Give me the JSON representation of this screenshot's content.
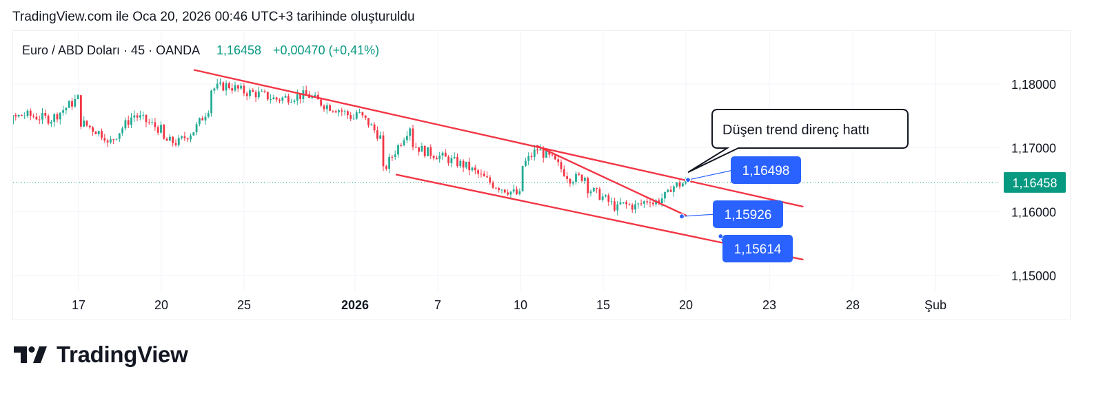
{
  "header": {
    "created_text": "TradingView.com ile Oca 20, 2026 00:46 UTC+3 tarihinde oluşturuldu"
  },
  "symbol": {
    "name": "Euro / ABD Doları · 45 · OANDA",
    "price": "1,16458",
    "change": "+0,00470 (+0,41%)"
  },
  "brand": {
    "name": "TradingView"
  },
  "colors": {
    "up": "#22ab94",
    "down": "#f23645",
    "trendline": "#f23645",
    "label_blue": "#2962ff",
    "price_badge": "#089981",
    "text": "#131722",
    "grid": "#f0f3fa"
  },
  "chart_data": {
    "type": "candlestick",
    "title": "Euro / ABD Doları · 45 · OANDA",
    "y_axis_labels": [
      "1,18000",
      "1,17000",
      "1,16000",
      "1,15000"
    ],
    "y_ticks": [
      1.18,
      1.17,
      1.16,
      1.15
    ],
    "ylim": [
      1.1475,
      1.1875
    ],
    "x_tick_labels": [
      "17",
      "20",
      "25",
      "2026",
      "7",
      "10",
      "15",
      "20",
      "23",
      "28",
      "Şub"
    ],
    "x_tick_dates": [
      "2025-12-17",
      "2025-12-20",
      "2025-12-25",
      "2026-01-01",
      "2026-01-07",
      "2026-01-10",
      "2026-01-15",
      "2026-01-20",
      "2026-01-23",
      "2026-01-28",
      "2026-02-01"
    ],
    "last_price": 1.16458,
    "last_price_label": "1,16458",
    "price_path": [
      [
        "2025-12-13",
        1.173
      ],
      [
        "2025-12-14",
        1.1735
      ],
      [
        "2025-12-15",
        1.1752
      ],
      [
        "2025-12-16",
        1.1745
      ],
      [
        "2025-12-17",
        1.1778
      ],
      [
        "2025-12-17",
        1.1742
      ],
      [
        "2025-12-18",
        1.1718
      ],
      [
        "2025-12-18",
        1.1702
      ],
      [
        "2025-12-19",
        1.1752
      ],
      [
        "2025-12-20",
        1.1728
      ],
      [
        "2025-12-20",
        1.1712
      ],
      [
        "2025-12-21",
        1.1708
      ],
      [
        "2025-12-22",
        1.1728
      ],
      [
        "2025-12-23",
        1.1768
      ],
      [
        "2025-12-23",
        1.1792
      ],
      [
        "2025-12-24",
        1.1798
      ],
      [
        "2025-12-25",
        1.1788
      ],
      [
        "2025-12-26",
        1.1784
      ],
      [
        "2025-12-27",
        1.1776
      ],
      [
        "2025-12-28",
        1.178
      ],
      [
        "2025-12-29",
        1.1783
      ],
      [
        "2025-12-30",
        1.1768
      ],
      [
        "2025-12-31",
        1.176
      ],
      [
        "2026-01-01",
        1.1745
      ],
      [
        "2026-01-01",
        1.1758
      ],
      [
        "2026-01-02",
        1.1738
      ],
      [
        "2026-01-03",
        1.1712
      ],
      [
        "2026-01-03",
        1.1662
      ],
      [
        "2026-01-04",
        1.1698
      ],
      [
        "2026-01-05",
        1.1735
      ],
      [
        "2026-01-05",
        1.1708
      ],
      [
        "2026-01-06",
        1.1695
      ],
      [
        "2026-01-07",
        1.1688
      ],
      [
        "2026-01-08",
        1.1672
      ],
      [
        "2026-01-09",
        1.1643
      ],
      [
        "2026-01-10",
        1.1625
      ],
      [
        "2026-01-10",
        1.1668
      ],
      [
        "2026-01-11",
        1.1698
      ],
      [
        "2026-01-12",
        1.168
      ],
      [
        "2026-01-13",
        1.1652
      ],
      [
        "2026-01-14",
        1.1655
      ],
      [
        "2026-01-14",
        1.1638
      ],
      [
        "2026-01-15",
        1.1622
      ],
      [
        "2026-01-16",
        1.1602
      ],
      [
        "2026-01-16",
        1.1612
      ],
      [
        "2026-01-17",
        1.1608
      ],
      [
        "2026-01-18",
        1.1623
      ],
      [
        "2026-01-18",
        1.1585
      ],
      [
        "2026-01-18",
        1.1613
      ],
      [
        "2026-01-19",
        1.1628
      ],
      [
        "2026-01-19",
        1.1638
      ],
      [
        "2026-01-20",
        1.16458
      ]
    ],
    "trendlines": [
      {
        "name": "upper-channel",
        "points": [
          [
            "2025-12-22",
            1.1822
          ],
          [
            "2026-01-25",
            1.1608
          ]
        ]
      },
      {
        "name": "lower-channel",
        "points": [
          [
            "2026-01-04",
            1.1658
          ],
          [
            "2026-01-25",
            1.1525
          ]
        ]
      },
      {
        "name": "inner-resistance",
        "points": [
          [
            "2026-01-11",
            1.1703
          ],
          [
            "2026-01-20",
            1.1594
          ]
        ]
      }
    ],
    "annotations": [
      {
        "text": "Düşen trend direnç hattı",
        "type": "callout",
        "anchor": [
          "2026-01-20",
          1.16498
        ]
      },
      {
        "text": "1,16498",
        "type": "price-label",
        "anchor": [
          "2026-01-20",
          1.16498
        ]
      },
      {
        "text": "1,15926",
        "type": "price-label",
        "anchor": [
          "2026-01-20",
          1.15926
        ]
      },
      {
        "text": "1,15614",
        "type": "price-label",
        "anchor": [
          "2026-01-21",
          1.15614
        ]
      }
    ],
    "grid": true
  }
}
